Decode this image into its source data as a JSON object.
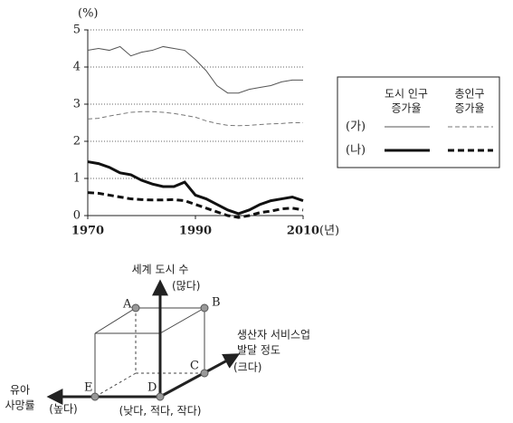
{
  "chart_data": {
    "type": "line",
    "y_label": "(%)",
    "x_unit": "(년)",
    "x": [
      1970,
      1972,
      1974,
      1976,
      1978,
      1980,
      1982,
      1984,
      1986,
      1988,
      1990,
      1992,
      1994,
      1996,
      1998,
      2000,
      2002,
      2004,
      2006,
      2008,
      2010
    ],
    "xlim": [
      1970,
      2010
    ],
    "xticks": [
      1970,
      1990,
      2010
    ],
    "ylim": [
      0,
      5
    ],
    "yticks": [
      0,
      1,
      2,
      3,
      4,
      5
    ],
    "grid": true,
    "legend_columns": [
      [
        "도시 인구",
        "증가율"
      ],
      [
        "총인구",
        "증가율"
      ]
    ],
    "series": [
      {
        "name": "(가)",
        "lines": [
          {
            "color": "#555555",
            "width": 1,
            "dash": false,
            "values": [
              4.45,
              4.5,
              4.45,
              4.55,
              4.3,
              4.4,
              4.45,
              4.55,
              4.5,
              4.45,
              4.2,
              3.9,
              3.5,
              3.3,
              3.3,
              3.4,
              3.45,
              3.5,
              3.6,
              3.65,
              3.65
            ]
          },
          {
            "color": "#777777",
            "width": 1,
            "dash": true,
            "values": [
              2.6,
              2.62,
              2.68,
              2.73,
              2.78,
              2.8,
              2.8,
              2.78,
              2.75,
              2.7,
              2.65,
              2.55,
              2.48,
              2.43,
              2.42,
              2.43,
              2.45,
              2.47,
              2.48,
              2.5,
              2.5
            ]
          }
        ]
      },
      {
        "name": "(나)",
        "lines": [
          {
            "color": "#111111",
            "width": 3,
            "dash": false,
            "values": [
              1.45,
              1.4,
              1.3,
              1.15,
              1.1,
              0.95,
              0.85,
              0.78,
              0.78,
              0.9,
              0.55,
              0.45,
              0.3,
              0.15,
              0.05,
              0.15,
              0.3,
              0.4,
              0.45,
              0.5,
              0.4
            ]
          },
          {
            "color": "#111111",
            "width": 3,
            "dash": true,
            "values": [
              0.62,
              0.6,
              0.55,
              0.5,
              0.45,
              0.43,
              0.42,
              0.42,
              0.43,
              0.4,
              0.3,
              0.2,
              0.1,
              0.0,
              -0.05,
              0.0,
              0.08,
              0.12,
              0.18,
              0.2,
              0.15
            ]
          }
        ]
      }
    ]
  },
  "diagram": {
    "y_axis": [
      "세계 도시 수",
      "(많다)"
    ],
    "z_axis": [
      "생산자 서비스업",
      "발달 정도",
      "(크다)"
    ],
    "x_axis": [
      "유아",
      "사망률",
      "(높다)"
    ],
    "origin": "(낮다, 적다, 작다)",
    "points": [
      "A",
      "B",
      "C",
      "D",
      "E"
    ]
  }
}
